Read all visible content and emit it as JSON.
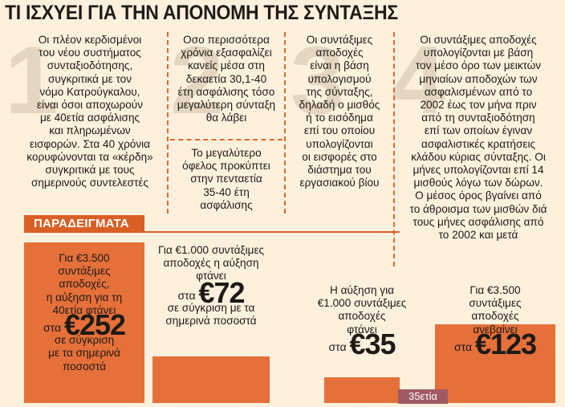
{
  "title": "ΤΙ ΙΣΧΥΕΙ ΓΙΑ ΤΗΝ ΑΠΟΝΟΜΗ ΤΗΣ ΣΥΝΤΑΞΗΣ",
  "background_numbers": [
    "1",
    "2",
    "3",
    "4"
  ],
  "columns": [
    {
      "lines": [
        "Οι πλέον κερδισμένοι",
        "του νέου συστήματος",
        "συνταξιοδότησης,",
        "συγκριτικά με τον",
        "νόμο Κατρούγκαλου,",
        "είναι όσοι αποχωρούν",
        "με 40ετία ασφάλισης",
        "και πληρωμένων",
        "εισφορών. Στα 40 χρόνια",
        "κορυφώνονται τα «κέρδη»",
        "συγκριτικά με τους",
        "σημερινούς συντελεστές"
      ]
    },
    {
      "lines": [
        "Οσο περισσότερα",
        "χρόνια εξασφαλίζει",
        "κανείς μέσα στη",
        "δεκαετία 30,1-40",
        "έτη ασφάλισης τόσο",
        "μεγαλύτερη σύνταξη",
        "θα λάβει"
      ],
      "lines2": [
        "Το μεγαλύτερο",
        "όφελος προκύπτει",
        "στην πενταετία",
        "35-40 έτη",
        "ασφάλισης"
      ]
    },
    {
      "lines": [
        "Οι συντάξιμες",
        "αποδοχές",
        "είναι η βάση",
        "υπολογισμού",
        "της σύνταξης,",
        "δηλαδή ο μισθός",
        "ή το εισόδημα",
        "επί του οποίου",
        "υπολογίζονται",
        "οι εισφορές στο",
        "διάστημα του",
        "εργασιακού βίου"
      ]
    },
    {
      "lines": [
        "Οι συντάξιμες αποδοχές",
        "υπολογίζονται με βάση",
        "τον μέσο όρο των μεικτών",
        "μηνιαίων αποδοχών των",
        "ασφαλισμένων από το",
        "2002 έως τον μήνα πριν",
        "από τη συνταξιοδότηση",
        "επί των οποίων έγιναν",
        "ασφαλιστικές κρατήσεις",
        "κλάδου κύριας σύνταξης. Οι",
        "μήνες υπολογίζονται επί 14",
        "μισθούς λόγω των δώρων.",
        "Ο μέσος όρος βγαίνει από",
        "το άθροισμα των μισθών διά",
        "τους μήνες ασφάλισης από",
        "το 2002 και μετά"
      ]
    }
  ],
  "examples_label": "ΠΑΡΑΔΕΙΓΜΑΤΑ",
  "examples": [
    {
      "intro": [
        "Για €3.500",
        "συντάξιμες",
        "αποδοχές,",
        "η αύξηση για τη",
        "40ετία φτάνει"
      ],
      "prefix": "στα",
      "amount": "€252",
      "outro": [
        "σε σύγκριση",
        "με τα σημερινά",
        "ποσοστά"
      ]
    },
    {
      "intro": [
        "Για €1.000 συντάξιμες",
        "αποδοχές η αύξηση",
        "φτάνει"
      ],
      "prefix": "στα",
      "amount": "€72",
      "outro": [
        "σε σύγκριση με τα",
        "σημερινά ποσοστά"
      ]
    },
    {
      "intro": [
        "Η αύξηση για",
        "€1.000 συντάξιμες",
        "αποδοχές",
        "φτάνει"
      ],
      "prefix": "στα",
      "amount": "€35",
      "outro": []
    },
    {
      "intro": [
        "Για €3.500",
        "συντάξιμες",
        "αποδοχές",
        "ανεβαίνει"
      ],
      "prefix": "στα",
      "amount": "€123",
      "outro": []
    }
  ],
  "bar_label": "35ετία",
  "colors": {
    "accent": "#e5703a",
    "tab": "#d95f24",
    "bar": "#a05a64",
    "background": "#fdf1de"
  }
}
